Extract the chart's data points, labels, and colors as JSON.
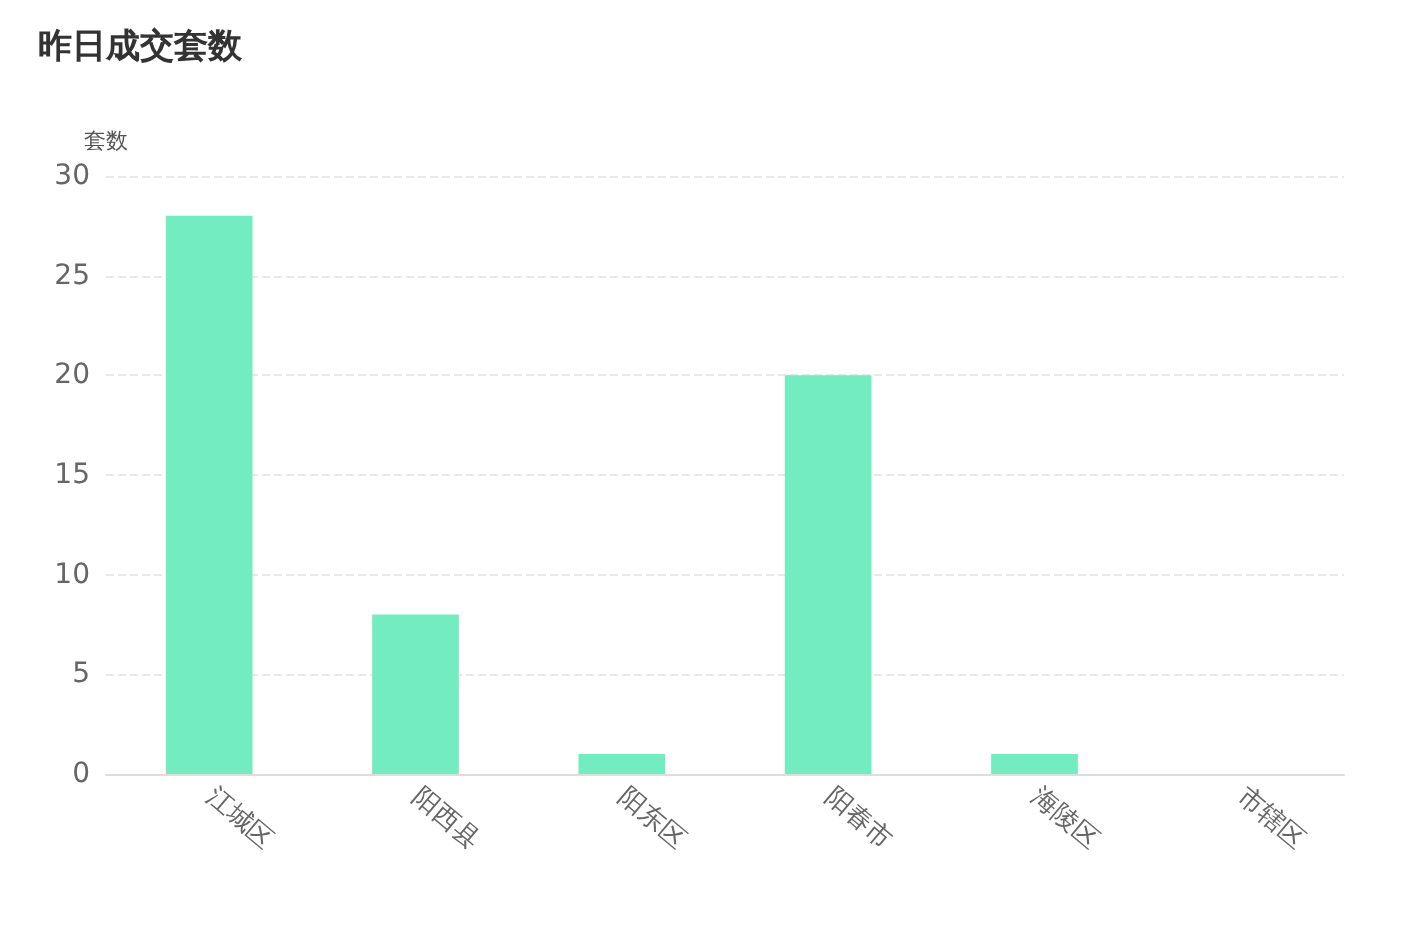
{
  "chart_data": {
    "type": "bar",
    "title": "昨日成交套数",
    "ylabel": "套数",
    "categories": [
      "江城区",
      "阳西县",
      "阳东区",
      "阳春市",
      "海陵区",
      "市辖区"
    ],
    "values": [
      28,
      8,
      1,
      20,
      1,
      0
    ],
    "color": "#72ecc0",
    "ylim": [
      0,
      30
    ],
    "yticks": [
      0,
      5,
      10,
      15,
      20,
      25,
      30
    ],
    "grid": "y"
  }
}
